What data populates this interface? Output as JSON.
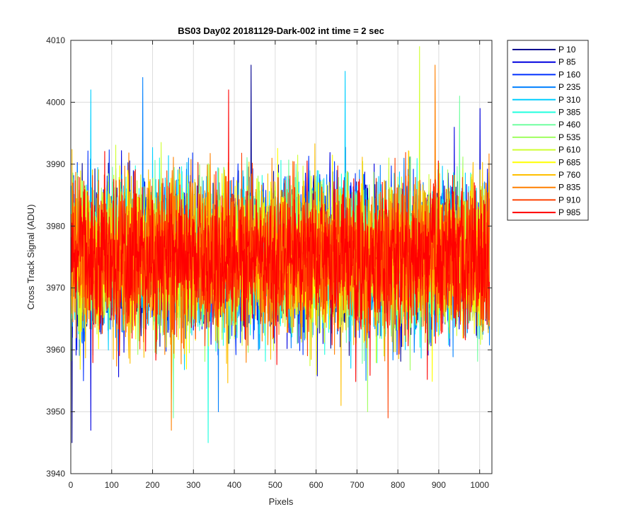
{
  "chart_data": {
    "type": "line",
    "title": "BS03 Day02 20181129-Dark-002 int time = 2 sec",
    "xlabel": "Pixels",
    "ylabel": "Cross Track Signal (ADU)",
    "xlim": [
      0,
      1030
    ],
    "ylim": [
      3940,
      4010
    ],
    "xticks": [
      0,
      100,
      200,
      300,
      400,
      500,
      600,
      700,
      800,
      900,
      1000
    ],
    "yticks": [
      3940,
      3950,
      3960,
      3970,
      3980,
      3990,
      4000,
      4010
    ],
    "grid": true,
    "legend_position": "outside-top-right",
    "n_points_per_series": 1024,
    "typical_mean": 3975,
    "typical_range": [
      3953,
      3999
    ],
    "series": [
      {
        "name": "P 10",
        "color": "#00008F",
        "notable": [
          [
            2,
            3945
          ],
          [
            440,
            4006
          ]
        ]
      },
      {
        "name": "P 85",
        "color": "#0000DF",
        "notable": [
          [
            48,
            3947
          ],
          [
            1000,
            3999
          ]
        ]
      },
      {
        "name": "P 160",
        "color": "#0030FF",
        "notable": [
          [
            30,
            3955
          ]
        ]
      },
      {
        "name": "P 235",
        "color": "#0080FF",
        "notable": [
          [
            360,
            3950
          ],
          [
            175,
            4004
          ]
        ]
      },
      {
        "name": "P 310",
        "color": "#00CFFF",
        "notable": [
          [
            670,
            4005
          ],
          [
            48,
            4002
          ]
        ]
      },
      {
        "name": "P 385",
        "color": "#20FFDF",
        "notable": [
          [
            335,
            3945
          ]
        ]
      },
      {
        "name": "P 460",
        "color": "#70FFA0",
        "notable": [
          [
            250,
            3949
          ],
          [
            950,
            4001
          ]
        ]
      },
      {
        "name": "P 535",
        "color": "#A0FF60",
        "notable": [
          [
            725,
            3950
          ]
        ]
      },
      {
        "name": "P 610",
        "color": "#CFFF30",
        "notable": [
          [
            852,
            4009
          ]
        ]
      },
      {
        "name": "P 685",
        "color": "#FFFF00",
        "notable": [
          [
            600,
            3956
          ]
        ]
      },
      {
        "name": "P 760",
        "color": "#FFBF00",
        "notable": [
          [
            245,
            3952
          ],
          [
            660,
            3951
          ]
        ]
      },
      {
        "name": "P 835",
        "color": "#FF8000",
        "notable": [
          [
            890,
            4006
          ],
          [
            245,
            3947
          ]
        ]
      },
      {
        "name": "P 910",
        "color": "#FF4000",
        "notable": [
          [
            775,
            3949
          ]
        ]
      },
      {
        "name": "P 985",
        "color": "#FF0000",
        "notable": [
          [
            385,
            4002
          ]
        ]
      }
    ]
  }
}
